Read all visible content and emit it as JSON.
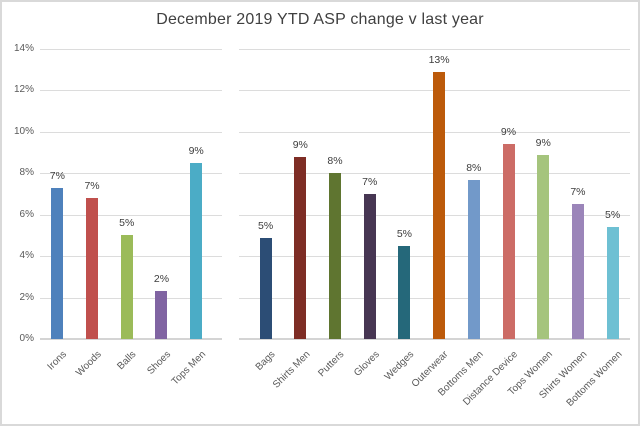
{
  "chart_data": {
    "type": "bar",
    "title": "December 2019 YTD ASP change v last year",
    "xlabel": "",
    "ylabel": "",
    "ylim": [
      0,
      14
    ],
    "ytick_interval": 2,
    "yticks": [
      "0%",
      "2%",
      "4%",
      "6%",
      "8%",
      "10%",
      "12%",
      "14%"
    ],
    "grid": true,
    "legend": false,
    "value_unit": "percent",
    "group_break_after": "Tops Men",
    "categories": [
      "Irons",
      "Woods",
      "Balls",
      "Shoes",
      "Tops Men",
      "Bags",
      "Shirts Men",
      "Putters",
      "Gloves",
      "Wedges",
      "Outerwear",
      "Bottoms Men",
      "Distance Device",
      "Tops Women",
      "Shirts Women",
      "Bottoms Women"
    ],
    "values": [
      7.3,
      6.8,
      5.0,
      2.3,
      8.5,
      4.9,
      8.8,
      8.0,
      7.0,
      4.5,
      12.9,
      7.7,
      9.4,
      8.9,
      6.5,
      5.4
    ],
    "data_labels": [
      "7%",
      "7%",
      "5%",
      "2%",
      "9%",
      "5%",
      "9%",
      "8%",
      "7%",
      "5%",
      "13%",
      "8%",
      "9%",
      "9%",
      "7%",
      "5%"
    ],
    "bar_colors": [
      "#4e81bc",
      "#c0504d",
      "#9bbb59",
      "#8064a2",
      "#4bacc6",
      "#2c4d75",
      "#7e2d25",
      "#5f7530",
      "#473653",
      "#25687a",
      "#bc5a0a",
      "#7299c9",
      "#cc6c66",
      "#a5c47d",
      "#9b85b9",
      "#6ec0d3"
    ]
  },
  "style": {
    "title_color": "#404040",
    "axis_label_color": "#595959",
    "data_label_color": "#3d3d3d",
    "gridline_color": "#dcdcdc",
    "border_color": "#d9d9d9",
    "background": "#ffffff"
  }
}
